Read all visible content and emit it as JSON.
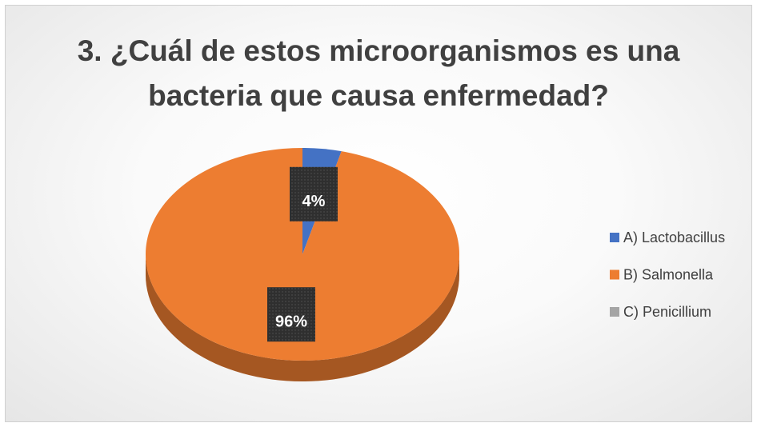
{
  "chart_data": {
    "type": "pie",
    "title": "3. ¿Cuál de estos microorganismos es una bacteria que causa enfermedad?",
    "categories": [
      "A) Lactobacillus",
      "B) Salmonella",
      "C) Penicillium"
    ],
    "values": [
      4,
      96,
      0
    ],
    "value_labels": [
      "4%",
      "96%",
      null
    ],
    "colors": [
      "#4472c4",
      "#ed7d31",
      "#a5a5a5"
    ],
    "legend": "right"
  }
}
